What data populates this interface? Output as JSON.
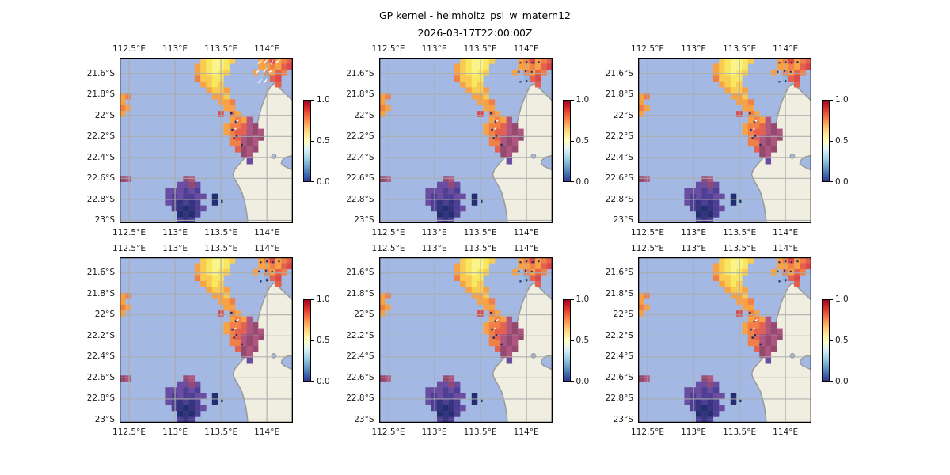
{
  "title": {
    "line1": "GP kernel - helmholtz_psi_w_matern12",
    "line2": "2026-03-17T22:00:00Z"
  },
  "colors": {
    "ocean": "#a3b8e3",
    "land": "#f0eee0",
    "coastline": "#9a9a9a",
    "gridline": "#ababab",
    "frame": "#000000",
    "marker_dark": "#1f2a66",
    "marker_white": "#ffffff",
    "teal_cell": "#14474a"
  },
  "chart_data": {
    "type": "heatmap",
    "title": "GP kernel - helmholtz_psi_w_matern12",
    "subtitle": "2026-03-17T22:00:00Z",
    "layout_hint": "2 rows x 3 columns of identical geographic pcolormesh panels, each with its own vertical colorbar on the right; gridlines on; x tick labels drawn above and below each panel",
    "x_ticks": [
      {
        "label": "112.5°E",
        "f": 0.055
      },
      {
        "label": "113°E",
        "f": 0.32
      },
      {
        "label": "113.5°E",
        "f": 0.585
      },
      {
        "label": "114°E",
        "f": 0.85
      }
    ],
    "y_ticks": [
      {
        "label": "21.6°S",
        "f": 0.094
      },
      {
        "label": "21.8°S",
        "f": 0.221
      },
      {
        "label": "22°S",
        "f": 0.348
      },
      {
        "label": "22.2°S",
        "f": 0.475
      },
      {
        "label": "22.4°S",
        "f": 0.602
      },
      {
        "label": "22.6°S",
        "f": 0.729
      },
      {
        "label": "22.8°S",
        "f": 0.856
      },
      {
        "label": "23°S",
        "f": 0.983
      }
    ],
    "colorbar": {
      "colormap": "RdYlBu_r",
      "min": 0.0,
      "max": 1.0,
      "tick_labels": [
        "1.0",
        "0.5",
        "0.0"
      ],
      "gradient_top_to_bottom": [
        "#a50026",
        "#d73027",
        "#f46d43",
        "#fdae61",
        "#fee090",
        "#ffffbf",
        "#e0f3f8",
        "#abd9e9",
        "#74add1",
        "#4575b4",
        "#313695"
      ]
    },
    "palette": {
      "y0": {
        "hex": "#faf489",
        "value": 0.55
      },
      "y1": {
        "hex": "#f8e75f",
        "value": 0.6
      },
      "y2": {
        "hex": "#f9cb50",
        "value": 0.65
      },
      "o1": {
        "hex": "#f7a345",
        "value": 0.75
      },
      "o2": {
        "hex": "#f08048",
        "value": 0.8
      },
      "r1": {
        "hex": "#e4614f",
        "value": 0.88
      },
      "r2": {
        "hex": "#da4a4c",
        "value": 0.92
      },
      "m1": {
        "hex": "#ae5680",
        "value": 0.97
      },
      "m2": {
        "hex": "#94496f",
        "value": 1.0
      },
      "lb": {
        "hex": "#8fb7de",
        "value": 0.35
      },
      "p1": {
        "hex": "#6a4da0",
        "value": 0.15
      },
      "p2": {
        "hex": "#4f3f94",
        "value": 0.1
      },
      "n1": {
        "hex": "#35347e",
        "value": 0.05
      },
      "n2": {
        "hex": "#232e6f",
        "value": 0.02
      }
    },
    "grid_shape": {
      "cols": 30,
      "rows": 28
    },
    "cells": [
      [
        14,
        0,
        "y2"
      ],
      [
        15,
        0,
        "y1"
      ],
      [
        16,
        0,
        "y0"
      ],
      [
        17,
        0,
        "y0"
      ],
      [
        18,
        0,
        "y1"
      ],
      [
        19,
        0,
        "y2"
      ],
      [
        13,
        1,
        "o1"
      ],
      [
        14,
        1,
        "y2"
      ],
      [
        15,
        1,
        "y1"
      ],
      [
        16,
        1,
        "y0"
      ],
      [
        17,
        1,
        "y0"
      ],
      [
        18,
        1,
        "y1"
      ],
      [
        13,
        2,
        "o1"
      ],
      [
        14,
        2,
        "y2"
      ],
      [
        15,
        2,
        "y1"
      ],
      [
        16,
        2,
        "y0"
      ],
      [
        17,
        2,
        "y1"
      ],
      [
        18,
        2,
        "y2"
      ],
      [
        13,
        3,
        "o2"
      ],
      [
        14,
        3,
        "y2"
      ],
      [
        15,
        3,
        "y2"
      ],
      [
        16,
        3,
        "y1"
      ],
      [
        17,
        3,
        "y1"
      ],
      [
        14,
        4,
        "o1"
      ],
      [
        15,
        4,
        "y2"
      ],
      [
        16,
        4,
        "y1"
      ],
      [
        17,
        4,
        "y2"
      ],
      [
        15,
        5,
        "o1"
      ],
      [
        16,
        5,
        "y2"
      ],
      [
        17,
        5,
        "y2"
      ],
      [
        18,
        5,
        "o1"
      ],
      [
        16,
        6,
        "o1"
      ],
      [
        17,
        6,
        "o1"
      ],
      [
        18,
        6,
        "y2"
      ],
      [
        17,
        7,
        "o1"
      ],
      [
        18,
        7,
        "o1"
      ],
      [
        19,
        7,
        "o2"
      ],
      [
        18,
        8,
        "o1"
      ],
      [
        19,
        8,
        "o1"
      ],
      [
        17,
        9,
        "r2"
      ],
      [
        19,
        9,
        "o2"
      ],
      [
        20,
        9,
        "o1"
      ],
      [
        19,
        10,
        "o1"
      ],
      [
        20,
        10,
        "o2"
      ],
      [
        21,
        10,
        "o1"
      ],
      [
        22,
        10,
        "m1"
      ],
      [
        18,
        11,
        "o1"
      ],
      [
        19,
        11,
        "o2"
      ],
      [
        20,
        11,
        "o2"
      ],
      [
        21,
        11,
        "r1"
      ],
      [
        22,
        11,
        "m1"
      ],
      [
        23,
        11,
        "m2"
      ],
      [
        18,
        12,
        "o1"
      ],
      [
        19,
        12,
        "o2"
      ],
      [
        20,
        12,
        "r1"
      ],
      [
        21,
        12,
        "r1"
      ],
      [
        22,
        12,
        "m1"
      ],
      [
        23,
        12,
        "m2"
      ],
      [
        24,
        12,
        "m1"
      ],
      [
        19,
        13,
        "o2"
      ],
      [
        20,
        13,
        "r1"
      ],
      [
        21,
        13,
        "m1"
      ],
      [
        22,
        13,
        "m2"
      ],
      [
        23,
        13,
        "m1"
      ],
      [
        24,
        13,
        "m2"
      ],
      [
        19,
        14,
        "o2"
      ],
      [
        20,
        14,
        "o2"
      ],
      [
        21,
        14,
        "m1"
      ],
      [
        22,
        14,
        "m2"
      ],
      [
        23,
        14,
        "m1"
      ],
      [
        20,
        15,
        "r1"
      ],
      [
        21,
        15,
        "m2"
      ],
      [
        22,
        15,
        "m1"
      ],
      [
        23,
        15,
        "m2"
      ],
      [
        21,
        16,
        "m2"
      ],
      [
        22,
        16,
        "m1"
      ],
      [
        22,
        17,
        "p1"
      ],
      [
        0,
        6,
        "o1"
      ],
      [
        1,
        6,
        "o2"
      ],
      [
        0,
        7,
        "o1"
      ],
      [
        0,
        8,
        "o2"
      ],
      [
        1,
        8,
        "o1"
      ],
      [
        0,
        9,
        "o1"
      ],
      [
        0,
        20,
        "m2"
      ],
      [
        1,
        20,
        "m1"
      ],
      [
        24,
        0,
        "o1"
      ],
      [
        25,
        0,
        "o2"
      ],
      [
        26,
        0,
        "r2"
      ],
      [
        27,
        0,
        "o1"
      ],
      [
        28,
        0,
        "o2"
      ],
      [
        29,
        0,
        "r1"
      ],
      [
        24,
        1,
        "o1"
      ],
      [
        25,
        1,
        "o1"
      ],
      [
        26,
        1,
        "o2"
      ],
      [
        27,
        1,
        "o1"
      ],
      [
        28,
        1,
        "r1"
      ],
      [
        29,
        1,
        "r2"
      ],
      [
        23,
        2,
        "o1"
      ],
      [
        25,
        2,
        "o2"
      ],
      [
        26,
        2,
        "o1"
      ],
      [
        27,
        2,
        "r1"
      ],
      [
        28,
        2,
        "o2"
      ],
      [
        25,
        3,
        "lb"
      ],
      [
        26,
        3,
        "r1"
      ],
      [
        27,
        3,
        "r2"
      ],
      [
        27,
        4,
        "r1"
      ],
      [
        11,
        20,
        "m2"
      ],
      [
        12,
        20,
        "m1"
      ],
      [
        10,
        21,
        "p1"
      ],
      [
        11,
        21,
        "p1"
      ],
      [
        12,
        21,
        "m2"
      ],
      [
        13,
        21,
        "p1"
      ],
      [
        8,
        22,
        "p1"
      ],
      [
        9,
        22,
        "p1"
      ],
      [
        10,
        22,
        "p1"
      ],
      [
        11,
        22,
        "p2"
      ],
      [
        12,
        22,
        "p1"
      ],
      [
        13,
        22,
        "p2"
      ],
      [
        8,
        23,
        "p1"
      ],
      [
        9,
        23,
        "p2"
      ],
      [
        10,
        23,
        "p1"
      ],
      [
        11,
        23,
        "p2"
      ],
      [
        12,
        23,
        "p2"
      ],
      [
        13,
        23,
        "p1"
      ],
      [
        14,
        23,
        "p1"
      ],
      [
        8,
        24,
        "p1"
      ],
      [
        9,
        24,
        "p2"
      ],
      [
        10,
        24,
        "n1"
      ],
      [
        11,
        24,
        "p2"
      ],
      [
        12,
        24,
        "n1"
      ],
      [
        13,
        24,
        "p2"
      ],
      [
        16,
        23,
        "n2"
      ],
      [
        16,
        24,
        "n2"
      ],
      [
        9,
        25,
        "p2"
      ],
      [
        10,
        25,
        "n1"
      ],
      [
        11,
        25,
        "n2"
      ],
      [
        12,
        25,
        "n1"
      ],
      [
        13,
        25,
        "p2"
      ],
      [
        14,
        25,
        "p1"
      ],
      [
        10,
        26,
        "n2"
      ],
      [
        11,
        26,
        "n1"
      ],
      [
        12,
        26,
        "n2"
      ],
      [
        13,
        26,
        "p2"
      ],
      [
        10,
        27,
        "p2"
      ],
      [
        11,
        27,
        "n1"
      ],
      [
        12,
        27,
        "p2"
      ]
    ],
    "land_polygon": [
      [
        89,
        15.5
      ],
      [
        91.5,
        17.5
      ],
      [
        94,
        20
      ],
      [
        97,
        23
      ],
      [
        100,
        26
      ],
      [
        100,
        59
      ],
      [
        96,
        60
      ],
      [
        93.8,
        62
      ],
      [
        93.3,
        64
      ],
      [
        95,
        65.5
      ],
      [
        100,
        68
      ],
      [
        100,
        100
      ],
      [
        74,
        100
      ],
      [
        73.5,
        95
      ],
      [
        72.8,
        90
      ],
      [
        71.8,
        85.5
      ],
      [
        70.5,
        81
      ],
      [
        68.5,
        77
      ],
      [
        66.5,
        73.5
      ],
      [
        65.5,
        70.5
      ],
      [
        66.5,
        67.5
      ],
      [
        68.5,
        65
      ],
      [
        71,
        62
      ],
      [
        73.8,
        58.5
      ],
      [
        76,
        55
      ],
      [
        77.3,
        52
      ],
      [
        77.8,
        49
      ],
      [
        78.5,
        45
      ],
      [
        79.3,
        41
      ],
      [
        80.3,
        36
      ],
      [
        81.8,
        30
      ],
      [
        83.5,
        25
      ],
      [
        85.5,
        20.5
      ],
      [
        87,
        17.5
      ]
    ],
    "lagoon": {
      "x": 89,
      "y": 59.5,
      "r": 1.3
    },
    "markers": {
      "cluster_positions": [
        [
          81,
          2.5
        ],
        [
          84.5,
          2.0
        ],
        [
          88,
          2.5
        ],
        [
          91.5,
          2.0
        ],
        [
          80,
          8.0
        ],
        [
          84,
          7.5
        ],
        [
          87.5,
          8.0
        ],
        [
          81,
          14.0
        ],
        [
          84.5,
          13.5
        ]
      ],
      "coast_dark_dots": [
        [
          64,
          33
        ],
        [
          66.5,
          38
        ],
        [
          64.5,
          43
        ],
        [
          67,
          46.5
        ],
        [
          65.5,
          48
        ],
        [
          70,
          52
        ]
      ],
      "coast_white": {
        "arrow": [
          69,
          37
        ],
        "dot": [
          66.5,
          42.5
        ]
      },
      "teal_dot": [
        58.5,
        86
      ]
    },
    "panels": [
      {
        "row": 0,
        "col": 0,
        "cluster_marker_style": "arrows"
      },
      {
        "row": 0,
        "col": 1,
        "cluster_marker_style": "dots"
      },
      {
        "row": 0,
        "col": 2,
        "cluster_marker_style": "dots"
      },
      {
        "row": 1,
        "col": 0,
        "cluster_marker_style": "dots"
      },
      {
        "row": 1,
        "col": 1,
        "cluster_marker_style": "dots"
      },
      {
        "row": 1,
        "col": 2,
        "cluster_marker_style": "dots"
      }
    ]
  }
}
